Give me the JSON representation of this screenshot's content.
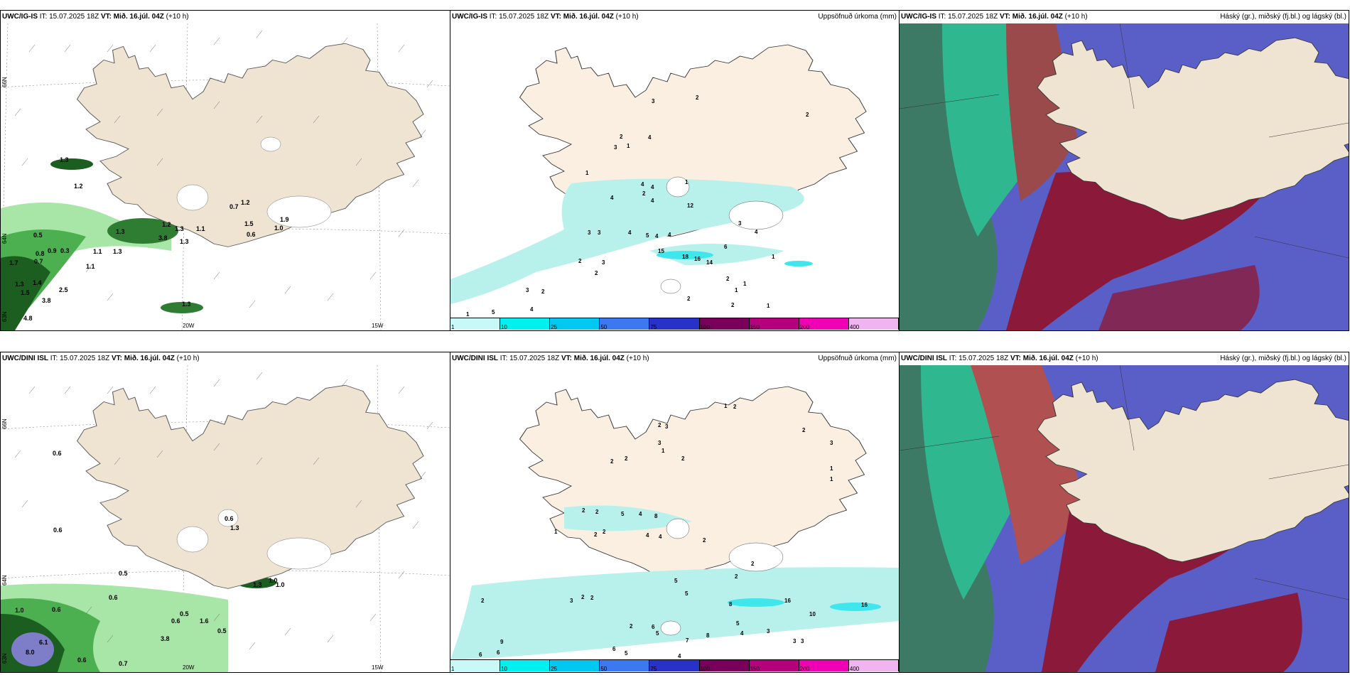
{
  "colors": {
    "land_tan": "#efe3d2",
    "land_cream": "#fbefe2",
    "glacier": "#ffffff",
    "precip_light": "#b8f0ec",
    "precip_cyan": "#3fe6ec",
    "wind_green_light": "#a8e6a8",
    "wind_green_mid": "#4caf50",
    "wind_green_dark": "#1b5e20",
    "cloud_high_green": "#2e8b6e",
    "cloud_mid_red": "#8b1a3a",
    "cloud_low_blue": "#5a5fc8"
  },
  "rows": [
    {
      "model": "UWC/IG-IS",
      "panels": {
        "wind": {
          "init": "IT: 15.07.2025 18Z",
          "valid_label": "VT:",
          "valid": "Mið. 16.júl. 04Z",
          "offset": "(+10 h)",
          "lat_labels": [
            "66N",
            "64N",
            "63N"
          ],
          "lon_labels": [
            "20W",
            "15W"
          ],
          "values": [
            "1.3",
            "1.2",
            "1.2",
            "0.7",
            "1.2",
            "1.3",
            "1.5",
            "1.0",
            "1.9",
            "1.1",
            "1.3",
            "3.8",
            "1.3",
            "0.5",
            "0.6",
            "0.8",
            "0.9",
            "0.3",
            "1.1",
            "0.7",
            "1.1",
            "1.7",
            "1.5",
            "1.3",
            "1.4",
            "2.5",
            "3.8",
            "4.8",
            "1.3",
            "1.3"
          ]
        },
        "precip": {
          "init": "IT: 15.07.2025 18Z",
          "valid_label": "VT:",
          "valid": "Mið. 16.júl. 04Z",
          "offset": "(+10 h)",
          "right_title": "Uppsöfnuð úrkoma (mm)",
          "values": [
            "3",
            "2",
            "2",
            "2",
            "3",
            "1",
            "4",
            "1",
            "4",
            "4",
            "2",
            "4",
            "4",
            "12",
            "1",
            "3",
            "3",
            "4",
            "5",
            "4",
            "4",
            "15",
            "18",
            "16",
            "14",
            "6",
            "3",
            "4",
            "1",
            "1",
            "2",
            "2",
            "3",
            "2",
            "3",
            "2",
            "1",
            "2",
            "2",
            "1",
            "4",
            "1",
            "5"
          ]
        },
        "cloud": {
          "init": "IT: 15.07.2025 18Z",
          "valid_label": "VT:",
          "valid": "Mið. 16.júl. 04Z",
          "offset": "(+10 h)",
          "right_title": "Háský (gr.), miðský (fj.bl.) og lágský (bl.)"
        }
      }
    },
    {
      "model": "UWC/DINI ISL",
      "panels": {
        "wind": {
          "init": "IT: 15.07.2025 18Z",
          "valid_label": "VT:",
          "valid": "Mið. 16.júl. 04Z",
          "offset": "(+10 h)",
          "lat_labels": [
            "66N",
            "64N",
            "63N"
          ],
          "lon_labels": [
            "20W",
            "15W"
          ],
          "values": [
            "0.6",
            "0.6",
            "0.6",
            "1.3",
            "1.3",
            "1.0",
            "1.0",
            "0.5",
            "0.6",
            "1.0",
            "0.6",
            "0.5",
            "0.6",
            "1.6",
            "0.5",
            "3.8",
            "6.1",
            "8.0",
            "0.6",
            "0.7"
          ]
        },
        "precip": {
          "init": "IT: 15.07.2025 18Z",
          "valid_label": "VT:",
          "valid": "Mið. 16.júl. 04Z",
          "offset": "(+10 h)",
          "right_title": "Uppsöfnuð úrkoma (mm)",
          "values": [
            "1",
            "2",
            "2",
            "2",
            "3",
            "3",
            "1",
            "2",
            "2",
            "2",
            "3",
            "1",
            "1",
            "2",
            "2",
            "5",
            "4",
            "8",
            "1",
            "2",
            "2",
            "4",
            "4",
            "2",
            "2",
            "2",
            "5",
            "5",
            "8",
            "16",
            "16",
            "10",
            "2",
            "3",
            "2",
            "2",
            "6",
            "2",
            "5",
            "7",
            "8",
            "5",
            "4",
            "3",
            "3",
            "3",
            "9",
            "6",
            "6",
            "5",
            "6",
            "4"
          ]
        },
        "cloud": {
          "init": "IT: 15.07.2025 18Z",
          "valid_label": "VT:",
          "valid": "Mið. 16.júl. 04Z",
          "offset": "(+10 h)",
          "right_title": "Háský (gr.), miðský (fj.bl.) og lágský (bl.)"
        }
      }
    }
  ],
  "colorbar": {
    "ticks": [
      "1",
      "10",
      "25",
      "50",
      "75",
      "100",
      "150",
      "200",
      "400"
    ],
    "colors": [
      "#c8f8f8",
      "#00f0f0",
      "#00c8f0",
      "#3c78f0",
      "#2832c8",
      "#78005a",
      "#b4007d",
      "#f000b4",
      "#f0b4f0"
    ]
  }
}
